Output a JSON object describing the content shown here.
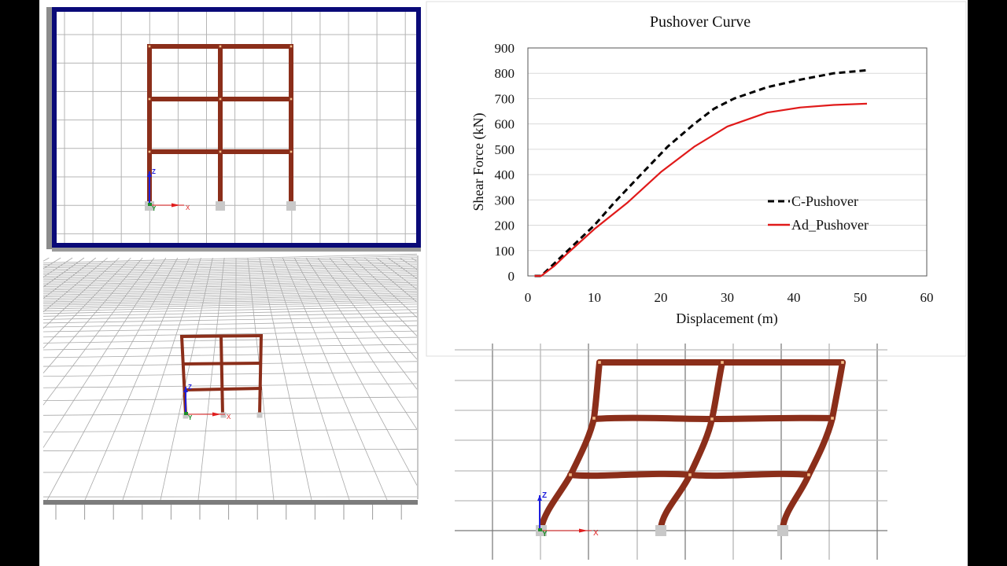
{
  "colors": {
    "member": "#8B2E1A",
    "node": "#F5C08A",
    "support": "#C8C8C8",
    "grid": "#B4B4B4",
    "viewport_border": "#0A0A78",
    "axis_x": "#E01E1E",
    "axis_y": "#1E8C2A",
    "axis_z": "#1E1EDC",
    "series_c": "#000000",
    "series_ad": "#E01A1A"
  },
  "panels": {
    "elevation_view": {
      "label": "2D elevation view of 3-storey 2-bay frame",
      "axis_labels": {
        "x": "X",
        "y": "Y",
        "z": "Z"
      }
    },
    "perspective_view": {
      "label": "3D perspective view of frame",
      "axis_labels": {
        "x": "X",
        "y": "Y",
        "z": "Z"
      }
    },
    "deformed_view": {
      "label": "Deformed shape of frame under pushover",
      "axis_labels": {
        "x": "X",
        "y": "Y",
        "z": "Z"
      }
    }
  },
  "chart_data": {
    "type": "line",
    "title": "Pushover Curve",
    "xlabel": "Displacement (m)",
    "ylabel": "Shear Force (kN)",
    "xlim": [
      0,
      60
    ],
    "ylim": [
      0,
      900
    ],
    "xticks": [
      "0",
      "10",
      "20",
      "30",
      "40",
      "50",
      "60"
    ],
    "yticks": [
      "0",
      "100",
      "200",
      "300",
      "400",
      "500",
      "600",
      "700",
      "800",
      "900"
    ],
    "grid": "horizontal",
    "legend_position": "inside-right",
    "series": [
      {
        "name": "C-Pushover",
        "style": "dashed",
        "color": "#000000",
        "x": [
          1,
          2,
          4,
          6,
          10,
          13,
          17,
          21,
          25,
          28,
          31,
          36,
          41,
          46,
          51
        ],
        "y": [
          0,
          0,
          50,
          100,
          200,
          290,
          400,
          510,
          600,
          660,
          700,
          745,
          775,
          800,
          812
        ]
      },
      {
        "name": "Ad_Pushover",
        "style": "solid",
        "color": "#E01A1A",
        "x": [
          1,
          2,
          4,
          6,
          10,
          15,
          20,
          25,
          30,
          36,
          41,
          46,
          51
        ],
        "y": [
          0,
          0,
          40,
          90,
          185,
          290,
          410,
          510,
          590,
          645,
          665,
          675,
          680
        ]
      }
    ]
  }
}
